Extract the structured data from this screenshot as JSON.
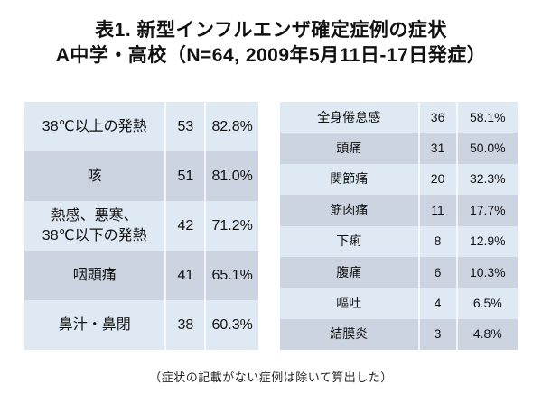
{
  "title": {
    "line1": "表1. 新型インフルエンザ確定症例の症状",
    "line2": "A中学・高校（N=64, 2009年5月11日-17日発症）"
  },
  "tables": {
    "columns": [
      "symptom",
      "count",
      "percent"
    ],
    "left": {
      "rows": [
        {
          "symptom": "38℃以上の発熱",
          "count": 53,
          "percent": "82.8%"
        },
        {
          "symptom": "咳",
          "count": 51,
          "percent": "81.0%"
        },
        {
          "symptom": "熱感、悪寒、\n38℃以下の発熱",
          "count": 42,
          "percent": "71.2%"
        },
        {
          "symptom": "咽頭痛",
          "count": 41,
          "percent": "65.1%"
        },
        {
          "symptom": "鼻汁・鼻閉",
          "count": 38,
          "percent": "60.3%"
        }
      ]
    },
    "right": {
      "rows": [
        {
          "symptom": "全身倦怠感",
          "count": 36,
          "percent": "58.1%"
        },
        {
          "symptom": "頭痛",
          "count": 31,
          "percent": "50.0%"
        },
        {
          "symptom": "関節痛",
          "count": 20,
          "percent": "32.3%"
        },
        {
          "symptom": "筋肉痛",
          "count": 11,
          "percent": "17.7%"
        },
        {
          "symptom": "下痢",
          "count": 8,
          "percent": "12.9%"
        },
        {
          "symptom": "腹痛",
          "count": 6,
          "percent": "10.3%"
        },
        {
          "symptom": "嘔吐",
          "count": 4,
          "percent": "6.5%"
        },
        {
          "symptom": "結膜炎",
          "count": 3,
          "percent": "4.8%"
        }
      ]
    }
  },
  "footnote": "（症状の記載がない症例は除いて算出した）",
  "colors": {
    "band_light": "#dfe9f3",
    "band_dark": "#ccd4e1",
    "text": "#111111",
    "background": "#ffffff"
  }
}
